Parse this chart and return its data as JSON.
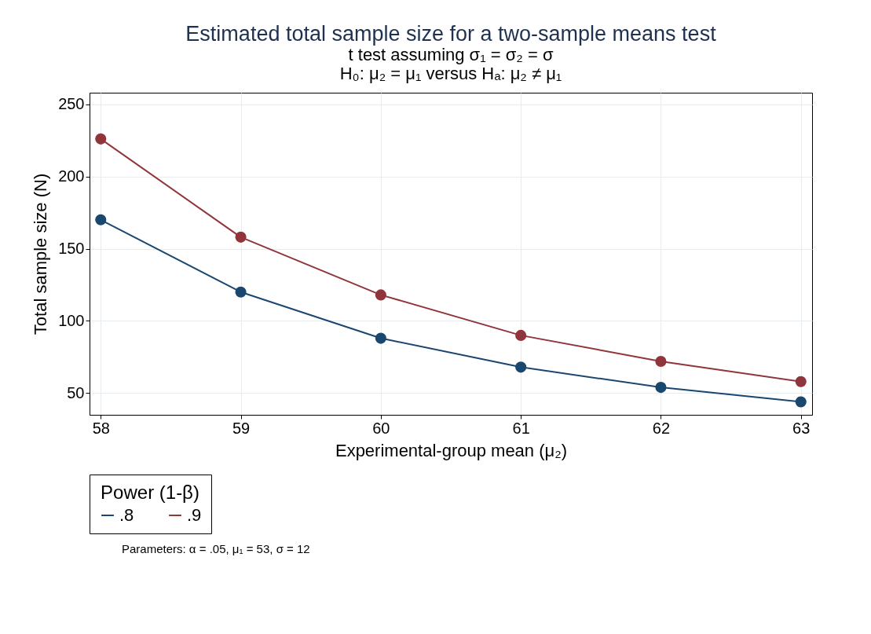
{
  "chart_data": {
    "type": "line",
    "title": "Estimated total sample size for a two-sample means test",
    "subtitle": [
      "t test assuming σ₁ = σ₂ = σ",
      "H₀: μ₂ = μ₁  versus  Hₐ: μ₂ ≠ μ₁"
    ],
    "xlabel": "Experimental-group mean (μ₂)",
    "ylabel": "Total sample size (N)",
    "legend_title": "Power (1-β)",
    "x": [
      58,
      59,
      60,
      61,
      62,
      63
    ],
    "series": [
      {
        "name": ".8",
        "color": "#1a476f",
        "values": [
          170,
          120,
          88,
          68,
          54,
          44
        ]
      },
      {
        "name": ".9",
        "color": "#90353b",
        "values": [
          226,
          158,
          118,
          90,
          72,
          58
        ]
      }
    ],
    "xlim": [
      57.92,
      63.08
    ],
    "xticks": [
      58,
      59,
      60,
      61,
      62,
      63
    ],
    "ylim": [
      35,
      258
    ],
    "yticks": [
      50,
      100,
      150,
      200,
      250
    ],
    "grid": true,
    "legend": "bottom",
    "marker": "circle",
    "line_style": "solid",
    "annotations": [
      "Parameters: α = .05, μ₁ = 53, σ = 12"
    ]
  }
}
